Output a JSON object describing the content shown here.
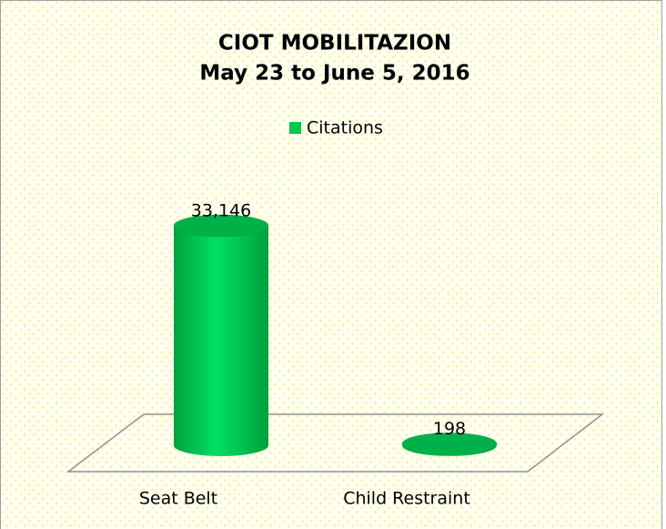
{
  "chart_data": {
    "type": "cylinder",
    "title": "CIOT MOBILITAZION",
    "subtitle": "May 23 to June 5, 2016",
    "categories": [
      "Seat Belt",
      "Child Restraint"
    ],
    "series": [
      {
        "name": "Citations",
        "color": "#00c853",
        "values": [
          33146,
          198
        ],
        "value_labels": [
          "33,146",
          "198"
        ]
      }
    ],
    "legend": "top"
  }
}
